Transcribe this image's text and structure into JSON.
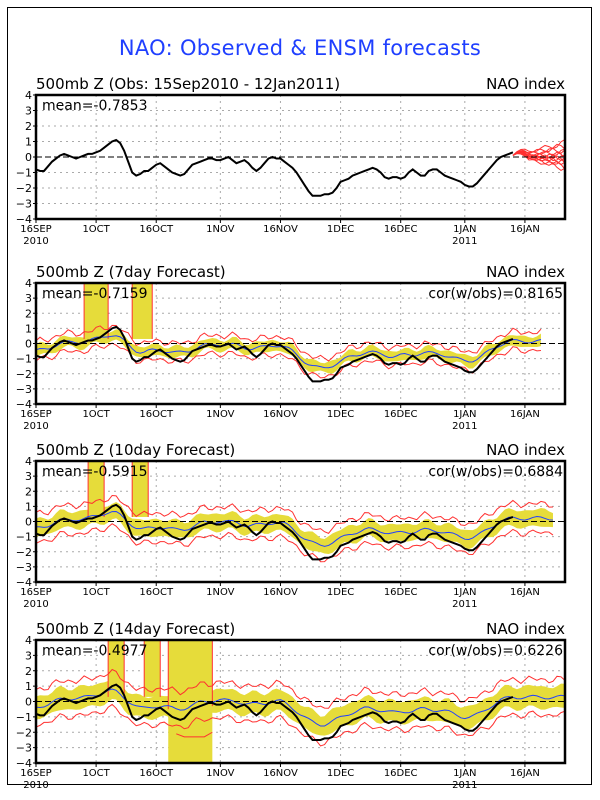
{
  "title": "NAO: Observed & ENSM forecasts",
  "colors": {
    "title": "#1f3fff",
    "observed": "#000000",
    "ens_mean": "#1f3fff",
    "spread_fill": "#e6dc3a",
    "envelope": "#ff3030",
    "forecast_members": "#ff3030"
  },
  "chart_data": [
    {
      "type": "line",
      "title": "500mb Z (Obs: 15Sep2010 - 12Jan2011)",
      "right_title": "NAO index",
      "annotation_left": "mean=-0.7853",
      "annotation_right": "",
      "ylim": [
        -4,
        4
      ],
      "yticks": [
        4,
        3,
        2,
        1,
        0,
        -1,
        -2,
        -3,
        -4
      ],
      "xlim_days": [
        0,
        132
      ],
      "xticks": [
        {
          "day": 0,
          "label": "16SEP",
          "sub": "2010"
        },
        {
          "day": 15,
          "label": "1OCT",
          "sub": ""
        },
        {
          "day": 30,
          "label": "16OCT",
          "sub": ""
        },
        {
          "day": 46,
          "label": "1NOV",
          "sub": ""
        },
        {
          "day": 61,
          "label": "16NOV",
          "sub": ""
        },
        {
          "day": 76,
          "label": "1DEC",
          "sub": ""
        },
        {
          "day": 91,
          "label": "16DEC",
          "sub": ""
        },
        {
          "day": 107,
          "label": "1JAN",
          "sub": "2011"
        },
        {
          "day": 122,
          "label": "16JAN",
          "sub": ""
        }
      ],
      "grid": true,
      "series": [
        {
          "name": "observed",
          "x": [
            0,
            1,
            2,
            3,
            4,
            5,
            6,
            7,
            8,
            9,
            10,
            11,
            12,
            13,
            14,
            15,
            16,
            17,
            18,
            19,
            20,
            21,
            22,
            23,
            24,
            25,
            26,
            27,
            28,
            29,
            30,
            31,
            32,
            33,
            34,
            35,
            36,
            37,
            38,
            39,
            40,
            41,
            42,
            43,
            44,
            45,
            46,
            47,
            48,
            49,
            50,
            51,
            52,
            53,
            54,
            55,
            56,
            57,
            58,
            59,
            60,
            61,
            62,
            63,
            64,
            65,
            66,
            67,
            68,
            69,
            70,
            71,
            72,
            73,
            74,
            75,
            76,
            77,
            78,
            79,
            80,
            81,
            82,
            83,
            84,
            85,
            86,
            87,
            88,
            89,
            90,
            91,
            92,
            93,
            94,
            95,
            96,
            97,
            98,
            99,
            100,
            101,
            102,
            103,
            104,
            105,
            106,
            107,
            108,
            109,
            110,
            111,
            112,
            113,
            114,
            115,
            116,
            117,
            118,
            119
          ],
          "y": [
            -0.8,
            -0.9,
            -0.9,
            -0.6,
            -0.3,
            -0.1,
            0.1,
            0.2,
            0.1,
            0.0,
            -0.1,
            0.0,
            0.1,
            0.2,
            0.2,
            0.3,
            0.4,
            0.6,
            0.8,
            1.0,
            1.1,
            0.9,
            0.4,
            -0.3,
            -1.0,
            -1.2,
            -1.1,
            -0.9,
            -0.9,
            -0.7,
            -0.5,
            -0.4,
            -0.6,
            -0.8,
            -1.0,
            -1.1,
            -1.2,
            -1.1,
            -0.8,
            -0.5,
            -0.4,
            -0.3,
            -0.2,
            -0.1,
            -0.1,
            -0.2,
            -0.2,
            -0.1,
            0.0,
            -0.2,
            -0.4,
            -0.3,
            -0.2,
            -0.4,
            -0.7,
            -0.9,
            -0.7,
            -0.4,
            -0.1,
            0.0,
            -0.1,
            -0.1,
            -0.3,
            -0.5,
            -0.7,
            -1.0,
            -1.4,
            -1.8,
            -2.2,
            -2.5,
            -2.5,
            -2.5,
            -2.4,
            -2.4,
            -2.3,
            -2.0,
            -1.6,
            -1.5,
            -1.4,
            -1.2,
            -1.1,
            -1.0,
            -0.9,
            -0.8,
            -0.7,
            -0.8,
            -1.0,
            -1.3,
            -1.4,
            -1.3,
            -1.3,
            -1.4,
            -1.3,
            -1.0,
            -0.8,
            -1.0,
            -1.2,
            -1.2,
            -0.9,
            -0.8,
            -0.8,
            -1.0,
            -1.2,
            -1.3,
            -1.4,
            -1.5,
            -1.6,
            -1.8,
            -1.9,
            -1.9,
            -1.7,
            -1.4,
            -1.1,
            -0.8,
            -0.5,
            -0.2,
            0.0,
            0.1,
            0.2,
            0.3
          ]
        },
        {
          "name": "forecast_members",
          "x_start": 119,
          "x_end": 132,
          "start": 0.1,
          "members_end": [
            0.9,
            0.7,
            0.5,
            0.3,
            0.1,
            0.0,
            -0.1,
            -0.2,
            -0.3,
            -0.4,
            -0.6,
            -0.7
          ]
        }
      ]
    },
    {
      "type": "line",
      "title": "500mb Z (7day Forecast)",
      "right_title": "NAO index",
      "annotation_left": "mean=-0.7159",
      "annotation_right": "cor(w/obs)=0.8165",
      "ylim": [
        -4,
        4
      ],
      "yticks": [
        4,
        3,
        2,
        1,
        0,
        -1,
        -2,
        -3,
        -4
      ],
      "xlim_days": [
        0,
        132
      ],
      "grid": true,
      "series": [
        {
          "name": "observed",
          "ref": "obs"
        },
        {
          "name": "ensemble_mean",
          "offset": 0.15,
          "smooth": true,
          "end_day": 126
        },
        {
          "name": "spread",
          "half_width": 0.35,
          "end_day": 126
        },
        {
          "name": "envelope",
          "half_width": 0.6,
          "end_day": 126
        },
        {
          "name": "spikes",
          "ranges": [
            [
              12,
              18,
              4
            ],
            [
              24,
              29,
              4
            ]
          ]
        }
      ]
    },
    {
      "type": "line",
      "title": "500mb Z (10day Forecast)",
      "right_title": "NAO index",
      "annotation_left": "mean=-0.5915",
      "annotation_right": "cor(w/obs)=0.6884",
      "ylim": [
        -4,
        4
      ],
      "yticks": [
        4,
        3,
        2,
        1,
        0,
        -1,
        -2,
        -3,
        -4
      ],
      "xlim_days": [
        0,
        132
      ],
      "grid": true,
      "series": [
        {
          "name": "observed",
          "ref": "obs"
        },
        {
          "name": "ensemble_mean",
          "offset": 0.35,
          "smooth": true,
          "end_day": 129
        },
        {
          "name": "spread",
          "half_width": 0.55,
          "end_day": 129
        },
        {
          "name": "envelope",
          "half_width": 0.95,
          "end_day": 129
        },
        {
          "name": "spikes",
          "ranges": [
            [
              13,
              17,
              4
            ],
            [
              24,
              28,
              4
            ]
          ]
        }
      ]
    },
    {
      "type": "line",
      "title": "500mb Z (14day Forecast)",
      "right_title": "NAO index",
      "annotation_left": "mean=-0.4977",
      "annotation_right": "cor(w/obs)=0.6226",
      "ylim": [
        -4,
        4
      ],
      "yticks": [
        4,
        3,
        2,
        1,
        0,
        -1,
        -2,
        -3,
        -4
      ],
      "xlim_days": [
        0,
        132
      ],
      "grid": true,
      "series": [
        {
          "name": "observed",
          "ref": "obs"
        },
        {
          "name": "ensemble_mean",
          "offset": 0.6,
          "smooth": true,
          "end_day": 132
        },
        {
          "name": "spread",
          "half_width": 0.7,
          "end_day": 132
        },
        {
          "name": "envelope",
          "half_width": 1.15,
          "end_day": 132
        },
        {
          "name": "spikes",
          "ranges": [
            [
              18,
              22,
              4
            ],
            [
              27,
              31,
              4
            ]
          ]
        },
        {
          "name": "deep_band",
          "range": [
            33,
            44
          ],
          "low": -4,
          "high": 4
        }
      ]
    }
  ]
}
